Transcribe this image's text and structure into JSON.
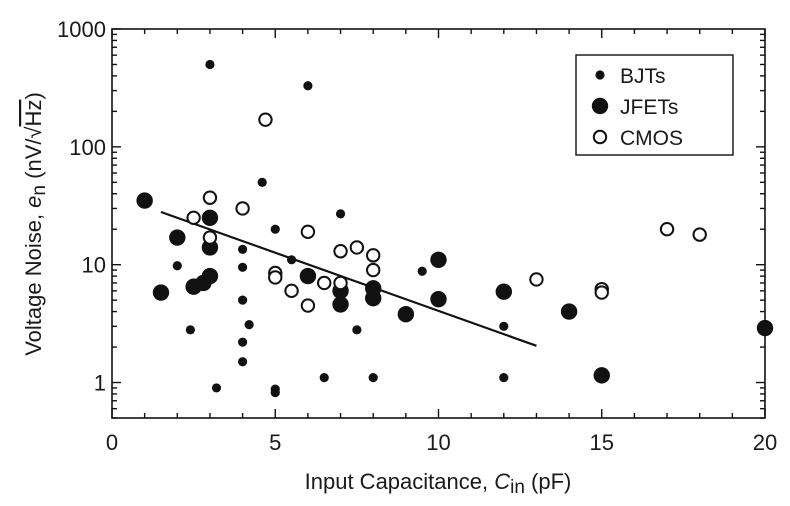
{
  "chart_data": {
    "type": "scatter",
    "xlabel": "Input Capacitance, Cin (pF)",
    "xlabel_parts": {
      "prefix": "Input Capacitance, ",
      "var": "C",
      "sub": "in",
      "suffix": " (pF)"
    },
    "ylabel": "Voltage Noise, en (nV/√Hz)",
    "ylabel_parts": {
      "prefix": "Voltage Noise, ",
      "var": "e",
      "sub": "n",
      "units_open": " (nV/",
      "radical": "√",
      "radicand": "Hz",
      "units_close": ")"
    },
    "xlim": [
      0,
      20
    ],
    "ylim": [
      0.5,
      1000
    ],
    "yscale": "log",
    "grid": false,
    "legend_position": "top-right",
    "x_ticks": [
      0,
      5,
      10,
      15,
      20
    ],
    "x_tick_labels": [
      "0",
      "5",
      "10",
      "15",
      "20"
    ],
    "y_ticks": [
      1,
      10,
      100,
      1000
    ],
    "y_tick_labels": [
      "1",
      "10",
      "100",
      "1000"
    ],
    "series": [
      {
        "name": "BJTs",
        "marker": "small-filled-circle",
        "points": [
          [
            2,
            9.8
          ],
          [
            2.4,
            2.8
          ],
          [
            3,
            500
          ],
          [
            3.2,
            0.9
          ],
          [
            4,
            13.5
          ],
          [
            4,
            9.5
          ],
          [
            4,
            5
          ],
          [
            4,
            2.2
          ],
          [
            4,
            1.5
          ],
          [
            4.2,
            3.1
          ],
          [
            4.6,
            50
          ],
          [
            5,
            20
          ],
          [
            5,
            0.88
          ],
          [
            5,
            0.82
          ],
          [
            5.5,
            11
          ],
          [
            6,
            330
          ],
          [
            6.5,
            1.1
          ],
          [
            7,
            27
          ],
          [
            7.5,
            2.8
          ],
          [
            8,
            1.1
          ],
          [
            9.5,
            8.8
          ],
          [
            12,
            3
          ],
          [
            12,
            1.1
          ]
        ]
      },
      {
        "name": "JFETs",
        "marker": "large-filled-circle",
        "points": [
          [
            1,
            35
          ],
          [
            1.5,
            5.8
          ],
          [
            2,
            17
          ],
          [
            2.5,
            6.5
          ],
          [
            2.8,
            7
          ],
          [
            3,
            25
          ],
          [
            3,
            14
          ],
          [
            3,
            8
          ],
          [
            6,
            8
          ],
          [
            7,
            6
          ],
          [
            7,
            4.6
          ],
          [
            8,
            6.3
          ],
          [
            8,
            5.2
          ],
          [
            9,
            3.8
          ],
          [
            10,
            11
          ],
          [
            10,
            5.1
          ],
          [
            12,
            5.9
          ],
          [
            14,
            4
          ],
          [
            15,
            1.15
          ],
          [
            20,
            2.9
          ]
        ]
      },
      {
        "name": "CMOS",
        "marker": "open-circle",
        "points": [
          [
            2.5,
            25
          ],
          [
            3,
            37
          ],
          [
            3,
            17
          ],
          [
            4,
            30
          ],
          [
            4.7,
            170
          ],
          [
            5,
            8.5
          ],
          [
            5,
            7.8
          ],
          [
            5.5,
            6
          ],
          [
            6,
            19
          ],
          [
            6,
            4.5
          ],
          [
            6.5,
            7
          ],
          [
            7,
            13
          ],
          [
            7,
            7
          ],
          [
            7.5,
            14
          ],
          [
            8,
            12
          ],
          [
            8,
            9
          ],
          [
            13,
            7.5
          ],
          [
            15,
            6.2
          ],
          [
            15,
            5.8
          ],
          [
            17,
            20
          ],
          [
            18,
            18
          ]
        ]
      }
    ],
    "trend_line": {
      "from": [
        1.5,
        28
      ],
      "to": [
        13,
        2.05
      ]
    },
    "colors": {
      "ink": "#111111",
      "background": "#ffffff"
    }
  }
}
